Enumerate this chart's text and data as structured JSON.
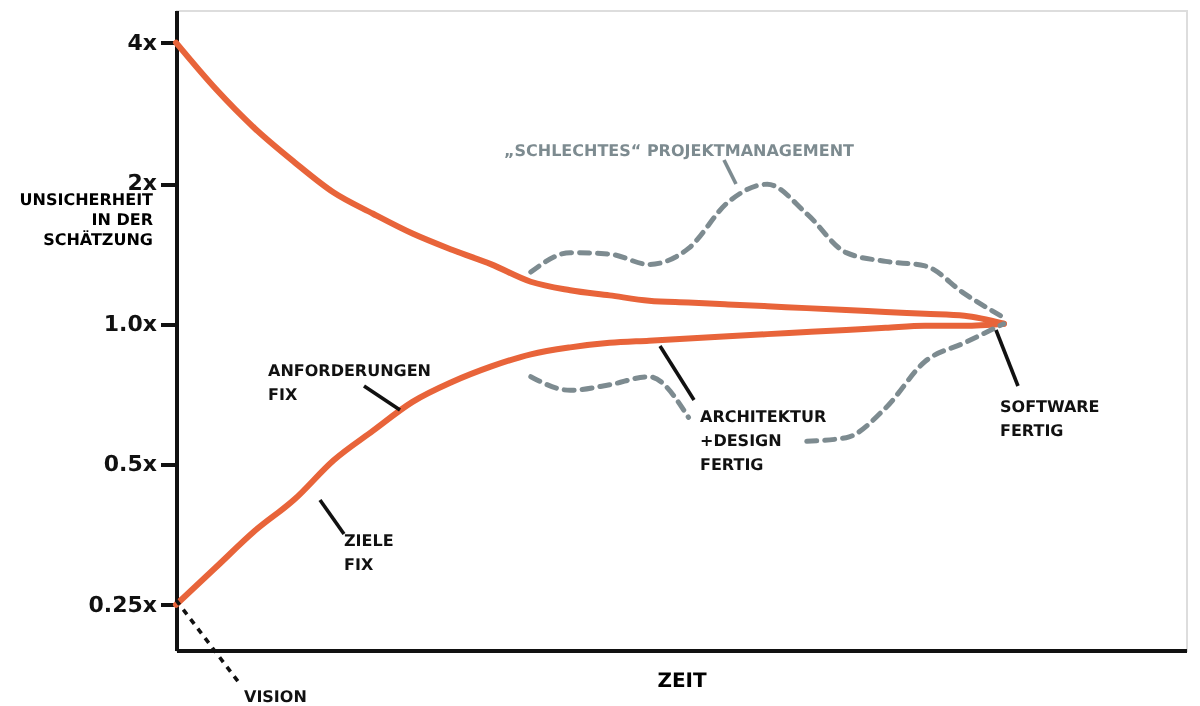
{
  "chart_data": {
    "type": "line",
    "ylabel": "UNSICHERHEIT IN DER SCHÄTZUNG",
    "xlabel": "ZEIT",
    "categories": [
      null,
      null,
      null,
      null,
      null,
      null,
      null,
      null,
      null,
      null,
      null,
      null,
      null,
      null,
      null,
      null,
      null,
      null,
      null,
      null,
      null,
      null
    ],
    "series": [
      {
        "color": "#e8643a",
        "line_style": "solid",
        "values": [
          4.0,
          3.19,
          2.62,
          2.22,
          1.91,
          1.72,
          1.56,
          1.44,
          1.34,
          1.23,
          1.18,
          1.15,
          1.12,
          1.11,
          1.1,
          1.09,
          1.08,
          1.07,
          1.06,
          1.05,
          1.04,
          1.0
        ]
      },
      {
        "color": "#e8643a",
        "line_style": "solid",
        "values": [
          0.25,
          0.3,
          0.36,
          0.42,
          0.51,
          0.59,
          0.68,
          0.75,
          0.81,
          0.86,
          0.89,
          0.91,
          0.92,
          0.93,
          0.94,
          0.95,
          0.96,
          0.97,
          0.98,
          0.99,
          0.99,
          1.0
        ]
      },
      {
        "color": "#7d8b90",
        "line_style": "dashed",
        "values": [
          null,
          null,
          null,
          null,
          null,
          null,
          null,
          null,
          null,
          1.29,
          1.42,
          1.41,
          1.34,
          1.45,
          1.82,
          1.99,
          1.72,
          1.42,
          1.36,
          1.33,
          1.16,
          1.03
        ]
      },
      {
        "color": "#7d8b90",
        "line_style": "dashed",
        "values": [
          null,
          null,
          null,
          null,
          null,
          null,
          null,
          null,
          null,
          0.77,
          0.72,
          0.74,
          0.77,
          0.63,
          null,
          null,
          0.56,
          0.57,
          0.66,
          0.83,
          0.91,
          1.0
        ]
      }
    ],
    "log": "y",
    "ylim": [
      0.2,
      4.7
    ],
    "yticks": [
      {
        "value": 0.25,
        "label": "0.25x"
      },
      {
        "value": 0.5,
        "label": "0.5x"
      },
      {
        "value": 1,
        "label": "1.0x"
      },
      {
        "value": 2,
        "label": "2x"
      },
      {
        "value": 4,
        "label": "4x"
      }
    ],
    "grid": false,
    "marker": "none",
    "annotations": [
      "„SCHLECHTES“ PROJEKTMANAGEMENT",
      "ANFORDERUNGEN\nFIX",
      "ZIELE\nFIX",
      "ARCHITEKTUR\n+DESIGN\nFERTIG",
      "SOFTWARE\nFERTIG",
      "VISION"
    ]
  }
}
